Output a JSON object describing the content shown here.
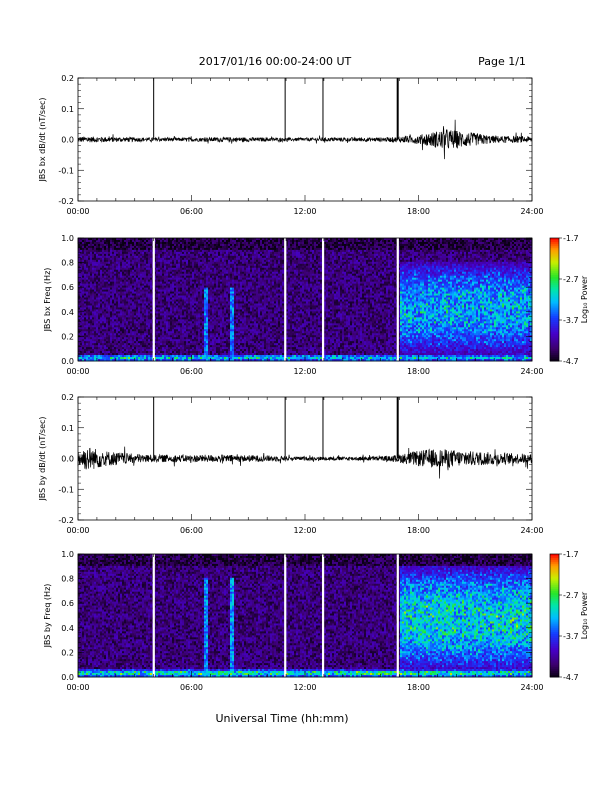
{
  "header": {
    "title": "2017/01/16  00:00-24:00 UT",
    "page_label": "Page 1/1"
  },
  "footer": {
    "xlabel": "Universal Time (hh:mm)"
  },
  "chart_data": [
    {
      "type": "line",
      "ylabel": "JBS bx dB/dt (nT/sec)",
      "xlim": [
        0,
        24
      ],
      "ylim": [
        -0.2,
        0.2
      ],
      "x_ticks": [
        "00:00",
        "06:00",
        "12:00",
        "18:00",
        "24:00"
      ],
      "y_ticks": [
        "0.2",
        "0.1",
        "0.0",
        "-0.1",
        "-0.2"
      ],
      "series_x_hours": [
        0,
        2,
        3.5,
        4.0,
        6,
        8,
        10.95,
        11.5,
        12.8,
        16.2,
        16.7,
        18,
        19.5,
        20.5,
        22,
        24
      ],
      "series_amplitude": [
        0.01,
        0.008,
        0.007,
        0.006,
        0.006,
        0.008,
        0.005,
        0.005,
        0.006,
        0.007,
        0.008,
        0.015,
        0.035,
        0.025,
        0.012,
        0.01
      ],
      "spikes": [
        {
          "x_hours": 4.0,
          "y": 0.2
        },
        {
          "x_hours": 10.95,
          "y": 0.2
        },
        {
          "x_hours": 12.95,
          "y": 0.2
        },
        {
          "x_hours": 16.9,
          "y": 0.2
        }
      ],
      "grid": false,
      "color": "#000000"
    },
    {
      "type": "heatmap",
      "ylabel": "JBS bx Freq (Hz)",
      "xlim": [
        0,
        24
      ],
      "ylim": [
        0.0,
        1.0
      ],
      "x_ticks": [
        "00:00",
        "06:00",
        "12:00",
        "18:00",
        "24:00"
      ],
      "y_ticks": [
        "1.0",
        "0.8",
        "0.6",
        "0.4",
        "0.2",
        "0.0"
      ],
      "colorbar": {
        "label": "Log₁₀ Power",
        "ticks": [
          "-1.7",
          "-2.7",
          "-3.7",
          "-4.7"
        ],
        "range": [
          -4.7,
          -1.7
        ]
      },
      "gaps_hours": [
        4.0,
        10.95,
        12.95,
        16.9
      ],
      "features": [
        {
          "description": "enhanced broadband power",
          "x_hours": [
            17,
            24
          ],
          "freq_hz": [
            0.05,
            0.8
          ],
          "log_power": -3.3
        },
        {
          "description": "narrow vertical bands",
          "x_hours": [
            6.7,
            8.2
          ],
          "freq_hz": [
            0.0,
            0.6
          ],
          "log_power": -3.5
        },
        {
          "description": "low-frequency band",
          "x_hours": [
            0,
            24
          ],
          "freq_hz": [
            0.0,
            0.05
          ],
          "log_power": -3.2
        }
      ]
    },
    {
      "type": "line",
      "ylabel": "JBS by dB/dt (nT/sec)",
      "xlim": [
        0,
        24
      ],
      "ylim": [
        -0.2,
        0.2
      ],
      "x_ticks": [
        "00:00",
        "06:00",
        "12:00",
        "18:00",
        "24:00"
      ],
      "y_ticks": [
        "0.2",
        "0.1",
        "0.0",
        "-0.1",
        "-0.2"
      ],
      "series_x_hours": [
        0,
        0.5,
        1.5,
        3,
        4.0,
        6,
        8,
        10,
        11.5,
        12.8,
        14,
        16.5,
        17.5,
        18.5,
        19.5,
        20.5,
        22,
        24
      ],
      "series_amplitude": [
        0.03,
        0.04,
        0.025,
        0.015,
        0.012,
        0.012,
        0.012,
        0.01,
        0.006,
        0.006,
        0.006,
        0.008,
        0.02,
        0.03,
        0.03,
        0.025,
        0.02,
        0.015
      ],
      "spikes": [
        {
          "x_hours": 4.0,
          "y": 0.2
        },
        {
          "x_hours": 10.95,
          "y": 0.2
        },
        {
          "x_hours": 12.95,
          "y": 0.2
        },
        {
          "x_hours": 16.9,
          "y": 0.2
        }
      ],
      "grid": false,
      "color": "#000000"
    },
    {
      "type": "heatmap",
      "ylabel": "JBS by Freq (Hz)",
      "xlim": [
        0,
        24
      ],
      "ylim": [
        0.0,
        1.0
      ],
      "x_ticks": [
        "00:00",
        "06:00",
        "12:00",
        "18:00",
        "24:00"
      ],
      "y_ticks": [
        "1.0",
        "0.8",
        "0.6",
        "0.4",
        "0.2",
        "0.0"
      ],
      "colorbar": {
        "label": "Log₁₀ Power",
        "ticks": [
          "-1.7",
          "-2.7",
          "-3.7",
          "-4.7"
        ],
        "range": [
          -4.7,
          -1.7
        ]
      },
      "gaps_hours": [
        4.0,
        10.95,
        12.95,
        16.9
      ],
      "features": [
        {
          "description": "enhanced broadband power",
          "x_hours": [
            17,
            24
          ],
          "freq_hz": [
            0.05,
            0.9
          ],
          "log_power": -3.1
        },
        {
          "description": "narrow vertical bands",
          "x_hours": [
            6.7,
            8.2
          ],
          "freq_hz": [
            0.0,
            0.8
          ],
          "log_power": -3.4
        },
        {
          "description": "low-frequency band",
          "x_hours": [
            0,
            24
          ],
          "freq_hz": [
            0.0,
            0.06
          ],
          "log_power": -3.0
        }
      ]
    }
  ]
}
